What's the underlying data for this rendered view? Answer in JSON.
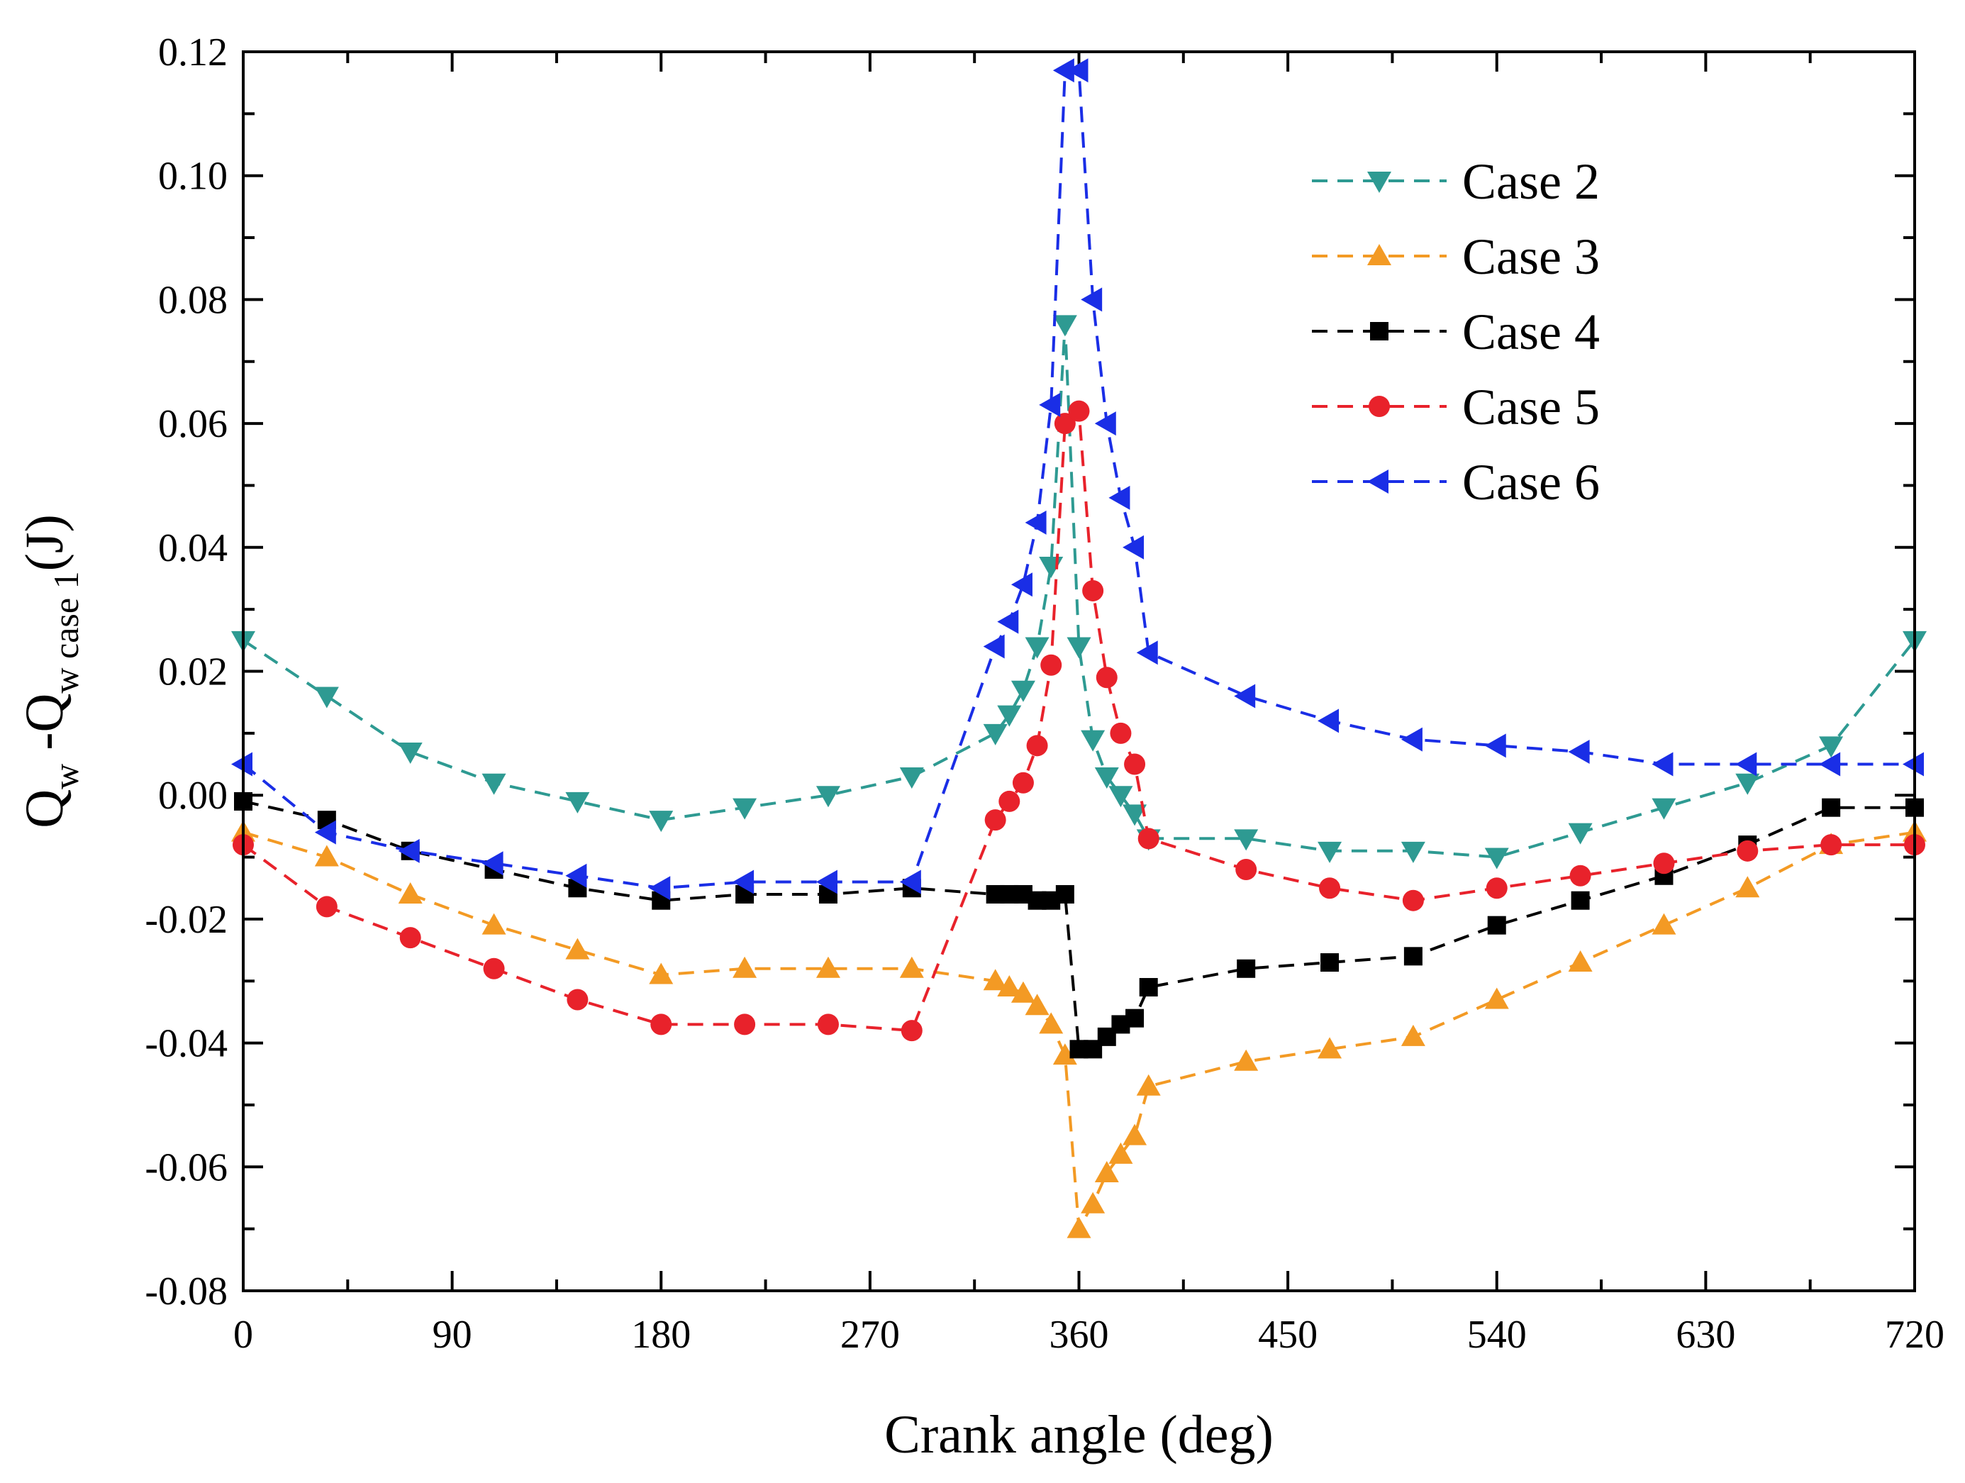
{
  "chart_data": {
    "type": "line",
    "title": "",
    "xlabel": "Crank angle (deg)",
    "ylabel": {
      "parts": [
        {
          "text": "Q",
          "sub": false
        },
        {
          "text": "w",
          "sub": true
        },
        {
          "text": " -Q",
          "sub": false
        },
        {
          "text": "w case 1",
          "sub": true
        },
        {
          "text": "(J)",
          "sub": false
        }
      ]
    },
    "xlim": [
      0,
      720
    ],
    "ylim": [
      -0.08,
      0.12
    ],
    "xticks": [
      0,
      90,
      180,
      270,
      360,
      450,
      540,
      630,
      720
    ],
    "xtick_labels": [
      "0",
      "90",
      "180",
      "270",
      "360",
      "450",
      "540",
      "630",
      "720"
    ],
    "yticks": [
      -0.08,
      -0.06,
      -0.04,
      -0.02,
      0.0,
      0.02,
      0.04,
      0.06,
      0.08,
      0.1,
      0.12
    ],
    "ytick_labels": [
      "-0.08",
      "-0.06",
      "-0.04",
      "-0.02",
      "0.00",
      "0.02",
      "0.04",
      "0.06",
      "0.08",
      "0.10",
      "0.12"
    ],
    "grid": false,
    "legend_position": "top-right",
    "series": [
      {
        "name": "Case 2",
        "color": "#2e9a92",
        "marker": "triangle-down",
        "x": [
          0,
          36,
          72,
          108,
          144,
          180,
          216,
          252,
          288,
          324,
          330,
          336,
          342,
          348,
          354,
          360,
          366,
          372,
          378,
          384,
          390,
          432,
          468,
          504,
          540,
          576,
          612,
          648,
          684,
          720
        ],
        "y": [
          0.025,
          0.016,
          0.007,
          0.002,
          -0.001,
          -0.004,
          -0.002,
          0.0,
          0.003,
          0.01,
          0.013,
          0.017,
          0.024,
          0.037,
          0.076,
          0.024,
          0.009,
          0.003,
          0.0,
          -0.003,
          -0.007,
          -0.007,
          -0.009,
          -0.009,
          -0.01,
          -0.006,
          -0.002,
          0.002,
          0.008,
          0.025
        ]
      },
      {
        "name": "Case 3",
        "color": "#f39a24",
        "marker": "triangle-up",
        "x": [
          0,
          36,
          72,
          108,
          144,
          180,
          216,
          252,
          288,
          324,
          330,
          336,
          342,
          348,
          354,
          360,
          366,
          372,
          378,
          384,
          390,
          432,
          468,
          504,
          540,
          576,
          612,
          648,
          684,
          720
        ],
        "y": [
          -0.006,
          -0.01,
          -0.016,
          -0.021,
          -0.025,
          -0.029,
          -0.028,
          -0.028,
          -0.028,
          -0.03,
          -0.031,
          -0.032,
          -0.034,
          -0.037,
          -0.042,
          -0.07,
          -0.066,
          -0.061,
          -0.058,
          -0.055,
          -0.047,
          -0.043,
          -0.041,
          -0.039,
          -0.033,
          -0.027,
          -0.021,
          -0.015,
          -0.008,
          -0.006
        ]
      },
      {
        "name": "Case 4",
        "color": "#000000",
        "marker": "square",
        "x": [
          0,
          36,
          72,
          108,
          144,
          180,
          216,
          252,
          288,
          324,
          330,
          336,
          342,
          348,
          354,
          360,
          366,
          372,
          378,
          384,
          390,
          432,
          468,
          504,
          540,
          576,
          612,
          648,
          684,
          720
        ],
        "y": [
          -0.001,
          -0.004,
          -0.009,
          -0.012,
          -0.015,
          -0.017,
          -0.016,
          -0.016,
          -0.015,
          -0.016,
          -0.016,
          -0.016,
          -0.017,
          -0.017,
          -0.016,
          -0.041,
          -0.041,
          -0.039,
          -0.037,
          -0.036,
          -0.031,
          -0.028,
          -0.027,
          -0.026,
          -0.021,
          -0.017,
          -0.013,
          -0.008,
          -0.002,
          -0.002
        ]
      },
      {
        "name": "Case 5",
        "color": "#e8222b",
        "marker": "circle",
        "x": [
          0,
          36,
          72,
          108,
          144,
          180,
          216,
          252,
          288,
          324,
          330,
          336,
          342,
          348,
          354,
          360,
          366,
          372,
          378,
          384,
          390,
          432,
          468,
          504,
          540,
          576,
          612,
          648,
          684,
          720
        ],
        "y": [
          -0.008,
          -0.018,
          -0.023,
          -0.028,
          -0.033,
          -0.037,
          -0.037,
          -0.037,
          -0.038,
          -0.004,
          -0.001,
          0.002,
          0.008,
          0.021,
          0.06,
          0.062,
          0.033,
          0.019,
          0.01,
          0.005,
          -0.007,
          -0.012,
          -0.015,
          -0.017,
          -0.015,
          -0.013,
          -0.011,
          -0.009,
          -0.008,
          -0.008
        ]
      },
      {
        "name": "Case 6",
        "color": "#1a2ee6",
        "marker": "triangle-left",
        "x": [
          0,
          36,
          72,
          108,
          144,
          180,
          216,
          252,
          288,
          324,
          330,
          336,
          342,
          348,
          354,
          360,
          366,
          372,
          378,
          384,
          390,
          432,
          468,
          504,
          540,
          576,
          612,
          648,
          684,
          720
        ],
        "y": [
          0.005,
          -0.006,
          -0.009,
          -0.011,
          -0.013,
          -0.015,
          -0.014,
          -0.014,
          -0.014,
          0.024,
          0.028,
          0.034,
          0.044,
          0.063,
          0.117,
          0.117,
          0.08,
          0.06,
          0.048,
          0.04,
          0.023,
          0.016,
          0.012,
          0.009,
          0.008,
          0.007,
          0.005,
          0.005,
          0.005,
          0.005
        ]
      }
    ]
  }
}
